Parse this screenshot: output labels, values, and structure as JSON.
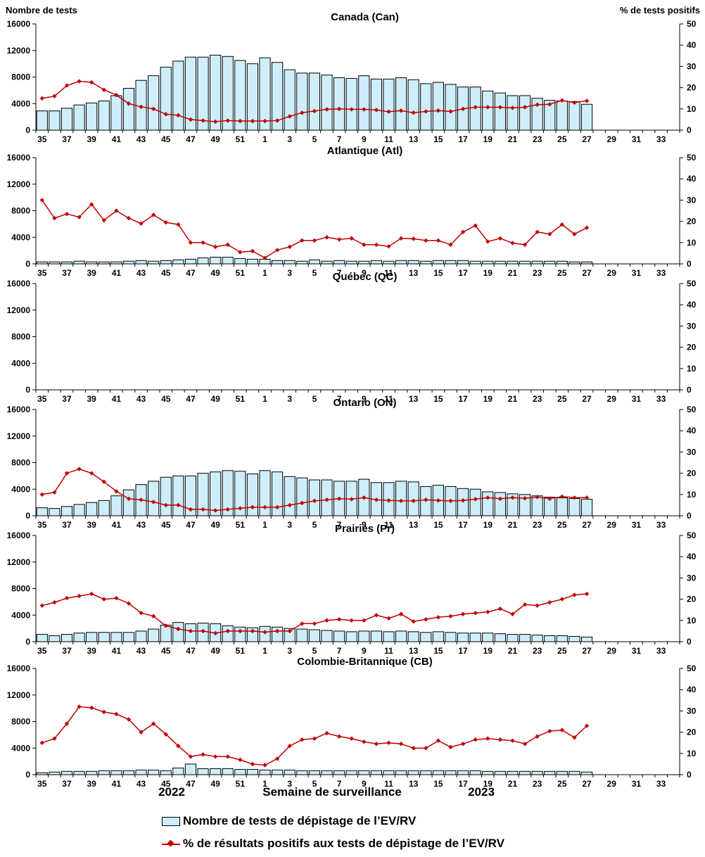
{
  "colors": {
    "bars": "#cdeefa",
    "bar_outline": "#000000",
    "line": "#c00000",
    "axis": "#000000"
  },
  "chart_data": {
    "type": "bar+line",
    "left_axis_label": "Nombre de tests",
    "right_axis_label": "% de tests positifs",
    "x_title": "Semaine de surveillance",
    "year_labels": [
      "2022",
      "2023"
    ],
    "legend": {
      "bars": "Nombre de tests de dépistage de l’EV/RV",
      "line": "% de résultats positifs aux tests de dépistage de l’EV/RV"
    },
    "weeks": [
      "35",
      "36",
      "37",
      "38",
      "39",
      "40",
      "41",
      "42",
      "43",
      "44",
      "45",
      "46",
      "47",
      "48",
      "49",
      "50",
      "51",
      "52",
      "1",
      "2",
      "3",
      "4",
      "5",
      "6",
      "7",
      "8",
      "9",
      "10",
      "11",
      "12",
      "13",
      "14",
      "15",
      "16",
      "17",
      "18",
      "19",
      "20",
      "21",
      "22",
      "23",
      "24",
      "25",
      "26",
      "27",
      "28",
      "29",
      "30",
      "31",
      "32",
      "33",
      "34"
    ],
    "x_tick_labels": [
      "35",
      "37",
      "39",
      "41",
      "43",
      "45",
      "47",
      "49",
      "51",
      "1",
      "3",
      "5",
      "7",
      "9",
      "11",
      "13",
      "15",
      "17",
      "19",
      "21",
      "23",
      "25",
      "27",
      "29",
      "31",
      "33"
    ],
    "y_left_ticks": [
      "0",
      "4000",
      "8000",
      "12000",
      "16000"
    ],
    "y_right_ticks": [
      "0",
      "10",
      "20",
      "30",
      "40",
      "50"
    ],
    "ylim_left": [
      0,
      16000
    ],
    "ylim_right": [
      0,
      50
    ],
    "panels": [
      {
        "title": "Canada (Can)",
        "tests": [
          2900,
          2900,
          3300,
          3800,
          4100,
          4400,
          5200,
          6300,
          7500,
          8200,
          9500,
          10400,
          11000,
          11000,
          11300,
          11100,
          10500,
          10000,
          10900,
          10200,
          9100,
          8600,
          8600,
          8300,
          7900,
          7800,
          8200,
          7700,
          7700,
          7900,
          7600,
          7000,
          7200,
          6900,
          6500,
          6500,
          5900,
          5600,
          5200,
          5200,
          4800,
          4500,
          4400,
          4300,
          3900
        ],
        "percent": [
          15,
          16,
          21,
          23,
          22.5,
          19,
          16.5,
          12.5,
          11,
          10,
          7.5,
          7,
          5,
          4.5,
          4,
          4.5,
          4.3,
          4.3,
          4.3,
          4.5,
          6.5,
          8.2,
          9,
          9.8,
          10,
          9.8,
          9.8,
          9.5,
          8.7,
          9.2,
          8.2,
          8.8,
          9.2,
          8.8,
          10,
          10.8,
          10.8,
          10.8,
          10.5,
          10.8,
          12,
          12.2,
          14,
          13,
          13.8
        ]
      },
      {
        "title": "Atlantique (Atl)",
        "tests": [
          300,
          300,
          300,
          400,
          300,
          300,
          300,
          400,
          500,
          400,
          500,
          600,
          700,
          900,
          1000,
          1000,
          800,
          700,
          700,
          500,
          500,
          400,
          600,
          400,
          500,
          400,
          400,
          500,
          400,
          500,
          500,
          400,
          500,
          500,
          500,
          400,
          400,
          400,
          400,
          400,
          400,
          400,
          400,
          300,
          300
        ],
        "percent": [
          30,
          21.5,
          23.5,
          22,
          28,
          20.5,
          25,
          21.5,
          19,
          23,
          19.5,
          18.5,
          10,
          10,
          8,
          9,
          5.5,
          6,
          2.8,
          6.5,
          8,
          11,
          11,
          12.5,
          11.5,
          12,
          9,
          9,
          8.2,
          12,
          11.8,
          11,
          11,
          9,
          15,
          18,
          10.5,
          12,
          9.8,
          9,
          15,
          14,
          18.5,
          14,
          17
        ]
      },
      {
        "title": "Québec (QC)",
        "tests": [],
        "percent": []
      },
      {
        "title": "Ontario (ON)",
        "tests": [
          1200,
          1100,
          1400,
          1700,
          2000,
          2300,
          3000,
          3900,
          4700,
          5200,
          5800,
          6000,
          6000,
          6400,
          6600,
          6800,
          6700,
          6300,
          6800,
          6600,
          5900,
          5700,
          5400,
          5400,
          5200,
          5200,
          5500,
          5000,
          5000,
          5200,
          5100,
          4400,
          4600,
          4400,
          4100,
          4000,
          3600,
          3500,
          3300,
          3200,
          3000,
          2800,
          2700,
          2600,
          2500
        ],
        "percent": [
          10,
          11,
          20,
          22,
          20,
          16,
          11.5,
          8,
          7.5,
          6.5,
          5,
          5,
          3,
          3,
          2.5,
          3,
          3.5,
          4,
          4,
          4,
          5,
          6,
          7,
          7.5,
          8,
          7.8,
          8.5,
          7.5,
          7.2,
          7,
          7,
          7.5,
          7.2,
          7,
          7.2,
          7.8,
          8.5,
          8,
          8.5,
          8.2,
          8.8,
          8,
          9,
          8.5,
          8.5
        ]
      },
      {
        "title": "Prairies (Pr)",
        "tests": [
          1100,
          900,
          1100,
          1300,
          1400,
          1400,
          1400,
          1400,
          1600,
          1900,
          2500,
          2900,
          2700,
          2800,
          2700,
          2400,
          2200,
          2100,
          2300,
          2200,
          2000,
          1900,
          1800,
          1700,
          1600,
          1500,
          1600,
          1600,
          1500,
          1600,
          1500,
          1400,
          1500,
          1400,
          1300,
          1300,
          1300,
          1200,
          1100,
          1100,
          1000,
          900,
          900,
          800,
          700
        ],
        "percent": [
          17,
          18.5,
          20.5,
          21.5,
          22.5,
          20,
          20.5,
          18,
          13.5,
          12,
          7.5,
          6,
          5,
          5,
          4,
          5,
          5,
          5,
          4.5,
          5,
          5,
          8.5,
          8.5,
          10,
          10.5,
          10,
          10,
          12.5,
          11,
          13,
          9.5,
          10.5,
          11.5,
          12,
          13,
          13.5,
          14,
          15.5,
          13,
          17.5,
          17,
          18.5,
          20,
          22,
          22.5
        ]
      },
      {
        "title": "Colombie-Britannique (CB)",
        "tests": [
          300,
          400,
          500,
          500,
          500,
          600,
          600,
          600,
          700,
          700,
          600,
          1000,
          1600,
          900,
          900,
          900,
          800,
          800,
          700,
          700,
          700,
          600,
          600,
          600,
          600,
          600,
          600,
          600,
          600,
          600,
          600,
          600,
          600,
          600,
          600,
          600,
          500,
          500,
          500,
          500,
          500,
          500,
          500,
          500,
          400
        ],
        "percent": [
          15,
          17,
          24,
          32,
          31.5,
          29.5,
          28.5,
          26,
          20,
          24,
          19,
          13.5,
          8.5,
          9.5,
          8.5,
          8.5,
          7,
          5,
          4.5,
          7.5,
          13.5,
          16.5,
          17,
          19.5,
          18,
          17,
          15.5,
          14.5,
          15,
          14.5,
          12.5,
          12.5,
          16,
          13,
          14.5,
          16.5,
          17,
          16.5,
          16,
          14.5,
          18,
          20.5,
          21,
          17.5,
          23
        ]
      }
    ]
  }
}
